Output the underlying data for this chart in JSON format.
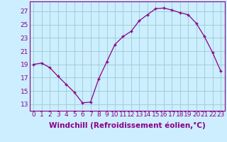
{
  "x": [
    0,
    1,
    2,
    3,
    4,
    5,
    6,
    7,
    8,
    9,
    10,
    11,
    12,
    13,
    14,
    15,
    16,
    17,
    18,
    19,
    20,
    21,
    22,
    23
  ],
  "y": [
    19.0,
    19.2,
    18.5,
    17.2,
    16.0,
    14.8,
    13.2,
    13.3,
    16.8,
    19.4,
    22.0,
    23.2,
    24.0,
    25.6,
    26.5,
    27.4,
    27.5,
    27.2,
    26.8,
    26.5,
    25.2,
    23.2,
    20.8,
    18.0
  ],
  "line_color": "#880088",
  "marker": "+",
  "xlabel": "Windchill (Refroidissement éolien,°C)",
  "ylabel_ticks": [
    13,
    15,
    17,
    19,
    21,
    23,
    25,
    27
  ],
  "xtick_labels": [
    "0",
    "1",
    "2",
    "3",
    "4",
    "5",
    "6",
    "7",
    "8",
    "9",
    "10",
    "11",
    "12",
    "13",
    "14",
    "15",
    "16",
    "17",
    "18",
    "19",
    "20",
    "21",
    "22",
    "23"
  ],
  "ylim": [
    12.0,
    28.5
  ],
  "xlim": [
    -0.5,
    23.5
  ],
  "bg_color": "#cceeff",
  "grid_color": "#99cccc",
  "font_color": "#880088",
  "tick_fontsize": 6.5,
  "xlabel_fontsize": 7.5
}
